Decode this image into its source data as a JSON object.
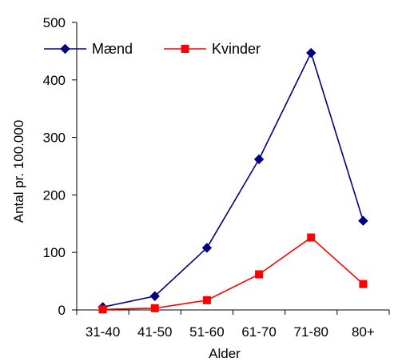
{
  "chart_data": {
    "type": "line",
    "categories": [
      "31-40",
      "41-50",
      "51-60",
      "61-70",
      "71-80",
      "80+"
    ],
    "series": [
      {
        "name": "Mænd",
        "values": [
          5,
          24,
          108,
          262,
          447,
          155
        ],
        "color": "#000080",
        "marker": "diamond"
      },
      {
        "name": "Kvinder",
        "values": [
          1,
          3,
          17,
          62,
          126,
          45
        ],
        "color": "#ff0000",
        "marker": "square"
      }
    ],
    "title": "",
    "xlabel": "Alder",
    "ylabel": "Antal pr. 100.000",
    "ylim": [
      0,
      500
    ],
    "yticks": [
      0,
      100,
      200,
      300,
      400,
      500
    ],
    "grid": false,
    "legend_position": "top-left"
  }
}
